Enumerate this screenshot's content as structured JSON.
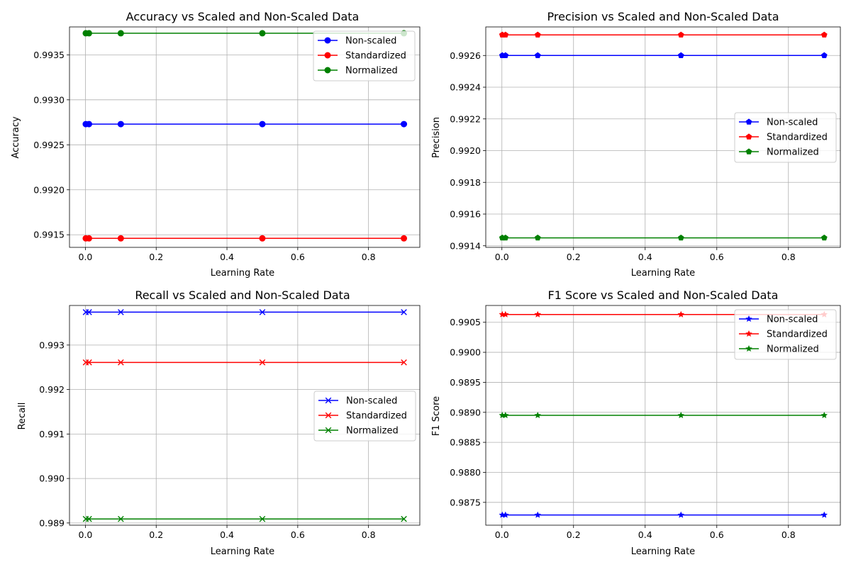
{
  "chart_data": [
    {
      "type": "line",
      "title": "Accuracy vs Scaled and Non-Scaled Data",
      "xlabel": "Learning Rate",
      "ylabel": "Accuracy",
      "marker": "circle",
      "x": [
        0.001,
        0.01,
        0.1,
        0.5,
        0.9
      ],
      "xlim": [
        -0.045,
        0.945
      ],
      "xticks": [
        0.0,
        0.2,
        0.4,
        0.6,
        0.8
      ],
      "xtick_labels": [
        "0.0",
        "0.2",
        "0.4",
        "0.6",
        "0.8"
      ],
      "ylim": [
        0.99136,
        0.99381
      ],
      "yticks": [
        0.9915,
        0.992,
        0.9925,
        0.993,
        0.9935
      ],
      "ytick_labels": [
        "0.9915",
        "0.9920",
        "0.9925",
        "0.9930",
        "0.9935"
      ],
      "grid": true,
      "legend_position": "top-right",
      "series": [
        {
          "name": "Non-scaled",
          "color": "#0000ff",
          "values": [
            0.99273,
            0.99273,
            0.99273,
            0.99273,
            0.99273
          ]
        },
        {
          "name": "Standardized",
          "color": "#ff0000",
          "values": [
            0.99146,
            0.99146,
            0.99146,
            0.99146,
            0.99146
          ]
        },
        {
          "name": "Normalized",
          "color": "#008000",
          "values": [
            0.99374,
            0.99374,
            0.99374,
            0.99374,
            0.99374
          ]
        }
      ]
    },
    {
      "type": "line",
      "title": "Precision vs Scaled and Non-Scaled Data",
      "xlabel": "Learning Rate",
      "ylabel": "Precision",
      "marker": "pentagon",
      "x": [
        0.001,
        0.01,
        0.1,
        0.5,
        0.9
      ],
      "xlim": [
        -0.045,
        0.945
      ],
      "xticks": [
        0.0,
        0.2,
        0.4,
        0.6,
        0.8
      ],
      "xtick_labels": [
        "0.0",
        "0.2",
        "0.4",
        "0.6",
        "0.8"
      ],
      "ylim": [
        0.99139,
        0.99278
      ],
      "yticks": [
        0.9914,
        0.9916,
        0.9918,
        0.992,
        0.9922,
        0.9924,
        0.9926
      ],
      "ytick_labels": [
        "0.9914",
        "0.9916",
        "0.9918",
        "0.9920",
        "0.9922",
        "0.9924",
        "0.9926"
      ],
      "grid": true,
      "legend_position": "center-right",
      "series": [
        {
          "name": "Non-scaled",
          "color": "#0000ff",
          "values": [
            0.9926,
            0.9926,
            0.9926,
            0.9926,
            0.9926
          ]
        },
        {
          "name": "Standardized",
          "color": "#ff0000",
          "values": [
            0.99273,
            0.99273,
            0.99273,
            0.99273,
            0.99273
          ]
        },
        {
          "name": "Normalized",
          "color": "#008000",
          "values": [
            0.99145,
            0.99145,
            0.99145,
            0.99145,
            0.99145
          ]
        }
      ]
    },
    {
      "type": "line",
      "title": "Recall vs Scaled and Non-Scaled Data",
      "xlabel": "Learning Rate",
      "ylabel": "Recall",
      "marker": "x",
      "x": [
        0.001,
        0.01,
        0.1,
        0.5,
        0.9
      ],
      "xlim": [
        -0.045,
        0.945
      ],
      "xticks": [
        0.0,
        0.2,
        0.4,
        0.6,
        0.8
      ],
      "xtick_labels": [
        "0.0",
        "0.2",
        "0.4",
        "0.6",
        "0.8"
      ],
      "ylim": [
        0.98895,
        0.99389
      ],
      "yticks": [
        0.989,
        0.99,
        0.991,
        0.992,
        0.993
      ],
      "ytick_labels": [
        "0.989",
        "0.990",
        "0.991",
        "0.992",
        "0.993"
      ],
      "grid": true,
      "legend_position": "center-right",
      "series": [
        {
          "name": "Non-scaled",
          "color": "#0000ff",
          "values": [
            0.99374,
            0.99374,
            0.99374,
            0.99374,
            0.99374
          ]
        },
        {
          "name": "Standardized",
          "color": "#ff0000",
          "values": [
            0.99261,
            0.99261,
            0.99261,
            0.99261,
            0.99261
          ]
        },
        {
          "name": "Normalized",
          "color": "#008000",
          "values": [
            0.98909,
            0.98909,
            0.98909,
            0.98909,
            0.98909
          ]
        }
      ]
    },
    {
      "type": "line",
      "title": "F1 Score vs Scaled and Non-Scaled Data",
      "xlabel": "Learning Rate",
      "ylabel": "F1 Score",
      "marker": "star",
      "x": [
        0.001,
        0.01,
        0.1,
        0.5,
        0.9
      ],
      "xlim": [
        -0.045,
        0.945
      ],
      "xticks": [
        0.0,
        0.2,
        0.4,
        0.6,
        0.8
      ],
      "xtick_labels": [
        "0.0",
        "0.2",
        "0.4",
        "0.6",
        "0.8"
      ],
      "ylim": [
        0.98712,
        0.99078
      ],
      "yticks": [
        0.9875,
        0.988,
        0.9885,
        0.989,
        0.9895,
        0.99,
        0.9905
      ],
      "ytick_labels": [
        "0.9875",
        "0.9880",
        "0.9885",
        "0.9890",
        "0.9895",
        "0.9900",
        "0.9905"
      ],
      "grid": true,
      "legend_position": "top-right",
      "series": [
        {
          "name": "Non-scaled",
          "color": "#0000ff",
          "values": [
            0.98729,
            0.98729,
            0.98729,
            0.98729,
            0.98729
          ]
        },
        {
          "name": "Standardized",
          "color": "#ff0000",
          "values": [
            0.99063,
            0.99063,
            0.99063,
            0.99063,
            0.99063
          ]
        },
        {
          "name": "Normalized",
          "color": "#008000",
          "values": [
            0.98895,
            0.98895,
            0.98895,
            0.98895,
            0.98895
          ]
        }
      ]
    }
  ]
}
